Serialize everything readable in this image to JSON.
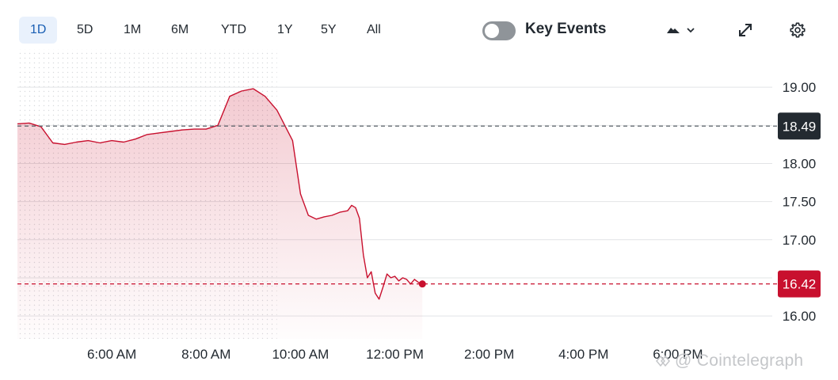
{
  "toolbar": {
    "ranges": [
      {
        "label": "1D",
        "active": true
      },
      {
        "label": "5D",
        "active": false
      },
      {
        "label": "1M",
        "active": false
      },
      {
        "label": "6M",
        "active": false
      },
      {
        "label": "YTD",
        "active": false
      },
      {
        "label": "1Y",
        "active": false
      },
      {
        "label": "5Y",
        "active": false
      },
      {
        "label": "All",
        "active": false
      }
    ],
    "key_events_label": "Key Events",
    "key_events_enabled": false,
    "chart_type_icon": "mountain-chart-icon",
    "expand_icon": "expand-icon",
    "settings_icon": "gear-icon"
  },
  "watermark": "@ Cointelegraph",
  "colors": {
    "line": "#c8102e",
    "previous_close_badge": "#232a31",
    "current_price_badge": "#c8102e",
    "active_tab_bg": "#e9f1fc"
  },
  "chart_data": {
    "type": "area",
    "title": "",
    "xlabel": "",
    "ylabel": "",
    "x_ticks": [
      "6:00 AM",
      "8:00 AM",
      "10:00 AM",
      "12:00 PM",
      "2:00 PM",
      "4:00 PM",
      "6:00 PM"
    ],
    "y_ticks": [
      "19.00",
      "18.50",
      "18.00",
      "17.50",
      "17.00",
      "16.50",
      "16.00"
    ],
    "ylim": [
      15.7,
      19.5
    ],
    "xlim": [
      "4:00 AM",
      "8:00 PM"
    ],
    "grid": true,
    "previous_close": {
      "label": "18.49",
      "value": 18.49
    },
    "current_price": {
      "label": "16.42",
      "value": 16.42
    },
    "series": [
      {
        "time": [
          "4:00 AM",
          "4:15 AM",
          "4:30 AM",
          "4:45 AM",
          "5:00 AM",
          "5:15 AM",
          "5:30 AM",
          "5:45 AM",
          "6:00 AM",
          "6:15 AM",
          "6:30 AM",
          "6:45 AM",
          "7:00 AM",
          "7:15 AM",
          "7:30 AM",
          "7:45 AM",
          "8:00 AM",
          "8:15 AM",
          "8:30 AM",
          "8:45 AM",
          "9:00 AM",
          "9:15 AM",
          "9:30 AM",
          "9:35 AM",
          "9:40 AM",
          "9:50 AM",
          "10:00 AM",
          "10:10 AM",
          "10:20 AM",
          "10:30 AM",
          "10:40 AM",
          "10:50 AM",
          "11:00 AM",
          "11:05 AM",
          "11:10 AM",
          "11:15 AM",
          "11:20 AM",
          "11:25 AM",
          "11:30 AM",
          "11:35 AM",
          "11:40 AM",
          "11:45 AM",
          "11:50 AM",
          "11:55 AM",
          "12:00 PM",
          "12:05 PM",
          "12:10 PM",
          "12:15 PM",
          "12:20 PM",
          "12:25 PM",
          "12:30 PM",
          "12:35 PM"
        ],
        "values": [
          18.52,
          18.53,
          18.48,
          18.27,
          18.25,
          18.28,
          18.3,
          18.27,
          18.3,
          18.28,
          18.32,
          18.38,
          18.4,
          18.42,
          18.44,
          18.45,
          18.45,
          18.5,
          18.88,
          18.95,
          18.98,
          18.88,
          18.7,
          18.6,
          18.5,
          18.3,
          17.6,
          17.32,
          17.27,
          17.3,
          17.32,
          17.36,
          17.38,
          17.45,
          17.42,
          17.28,
          16.8,
          16.5,
          16.58,
          16.3,
          16.22,
          16.38,
          16.55,
          16.5,
          16.52,
          16.46,
          16.5,
          16.48,
          16.42,
          16.48,
          16.44,
          16.42
        ]
      }
    ]
  }
}
